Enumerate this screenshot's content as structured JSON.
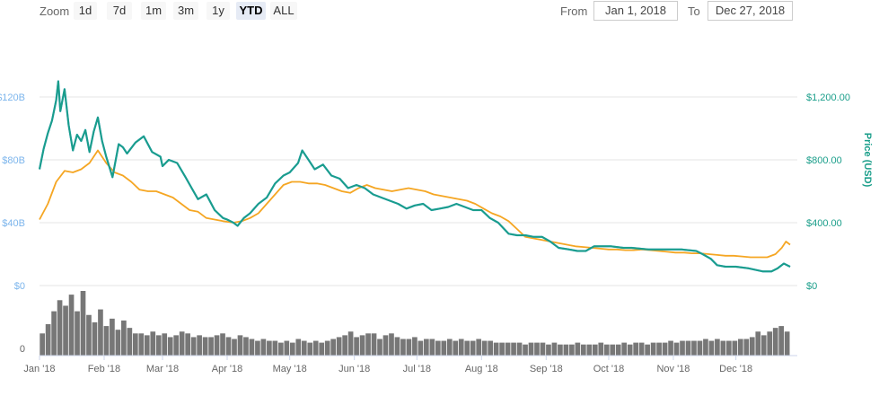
{
  "toolbar": {
    "zoom_label": "Zoom",
    "buttons": [
      "1d",
      "7d",
      "1m",
      "3m",
      "1y",
      "YTD",
      "ALL"
    ],
    "active_button": "YTD",
    "from_label": "From",
    "from_value": "Jan 1, 2018",
    "to_label": "To",
    "to_value": "Dec 27, 2018"
  },
  "colors": {
    "market_cap": "#4aa3df",
    "price": "#1a9e8a",
    "btc_price": "#f5a623",
    "volume": "#777777",
    "left_axis_text": "#7cb5ec",
    "right_axis_text": "#1a9e8a",
    "grid": "#e6e6e6"
  },
  "chart_data": {
    "type": "line",
    "x_start": "2018-01-01",
    "x_end": "2018-12-27",
    "x_ticks": [
      "Jan '18",
      "Feb '18",
      "Mar '18",
      "Apr '18",
      "May '18",
      "Jun '18",
      "Jul '18",
      "Aug '18",
      "Sep '18",
      "Oct '18",
      "Nov '18",
      "Dec '18"
    ],
    "left_axis": {
      "label": "",
      "ticks": [
        "$0",
        "$40B",
        "$80B",
        "$120B"
      ],
      "range": [
        0,
        160
      ]
    },
    "right_axis": {
      "label": "Price (USD)",
      "ticks": [
        "$0",
        "$400.00",
        "$800.00",
        "$1,200.00"
      ],
      "range": [
        0,
        1600
      ]
    },
    "volume_axis": {
      "ticks": [
        "0"
      ]
    },
    "grid": true,
    "series": [
      {
        "axis": "left",
        "dates": [
          "2018-01-01",
          "2018-01-03",
          "2018-01-05",
          "2018-01-07",
          "2018-01-09",
          "2018-01-10",
          "2018-01-11",
          "2018-01-13",
          "2018-01-15",
          "2018-01-17",
          "2018-01-19",
          "2018-01-21",
          "2018-01-23",
          "2018-01-25",
          "2018-01-27",
          "2018-01-29",
          "2018-01-31",
          "2018-02-02",
          "2018-02-05",
          "2018-02-06",
          "2018-02-08",
          "2018-02-10",
          "2018-02-12",
          "2018-02-16",
          "2018-02-20",
          "2018-02-24",
          "2018-02-28",
          "2018-03-01",
          "2018-03-04",
          "2018-03-08",
          "2018-03-12",
          "2018-03-15",
          "2018-03-18",
          "2018-03-22",
          "2018-03-26",
          "2018-03-30",
          "2018-04-01",
          "2018-04-04",
          "2018-04-06",
          "2018-04-09",
          "2018-04-12",
          "2018-04-16",
          "2018-04-20",
          "2018-04-24",
          "2018-04-28",
          "2018-05-01",
          "2018-05-05",
          "2018-05-07",
          "2018-05-10",
          "2018-05-13",
          "2018-05-17",
          "2018-05-21",
          "2018-05-25",
          "2018-05-29",
          "2018-06-02",
          "2018-06-06",
          "2018-06-10",
          "2018-06-14",
          "2018-06-18",
          "2018-06-22",
          "2018-06-26",
          "2018-06-30",
          "2018-07-04",
          "2018-07-08",
          "2018-07-12",
          "2018-07-16",
          "2018-07-20",
          "2018-07-24",
          "2018-07-28",
          "2018-08-01",
          "2018-08-05",
          "2018-08-09",
          "2018-08-14",
          "2018-08-18",
          "2018-08-22",
          "2018-08-26",
          "2018-08-30",
          "2018-09-03",
          "2018-09-07",
          "2018-09-12",
          "2018-09-16",
          "2018-09-20",
          "2018-09-24",
          "2018-09-28",
          "2018-10-02",
          "2018-10-08",
          "2018-10-12",
          "2018-10-20",
          "2018-10-28",
          "2018-11-05",
          "2018-11-12",
          "2018-11-15",
          "2018-11-19",
          "2018-11-22",
          "2018-11-26",
          "2018-12-01",
          "2018-12-07",
          "2018-12-14",
          "2018-12-18",
          "2018-12-21",
          "2018-12-24",
          "2018-12-27"
        ],
        "values": [
          74,
          87,
          97,
          105,
          118,
          130,
          111,
          125,
          102,
          86,
          96,
          92,
          99,
          85,
          98,
          107,
          92,
          82,
          69,
          76,
          90,
          88,
          84,
          91,
          95,
          85,
          82,
          76,
          80,
          78,
          69,
          62,
          55,
          58,
          48,
          43,
          42,
          40,
          38,
          43,
          46,
          52,
          56,
          65,
          70,
          72,
          78,
          86,
          80,
          74,
          77,
          70,
          68,
          62,
          64,
          62,
          58,
          56,
          54,
          52,
          49,
          51,
          52,
          48,
          49,
          50,
          52,
          50,
          48,
          48,
          43,
          40,
          33,
          32,
          32,
          31,
          31,
          28,
          24,
          23,
          22,
          22,
          25,
          25,
          25,
          24,
          24,
          23,
          23,
          23,
          22,
          20,
          17,
          13,
          12,
          12,
          11,
          9,
          9,
          11,
          14,
          12
        ]
      },
      {
        "name": "Price (USD)",
        "axis": "right",
        "dates": [
          "2018-01-01",
          "2018-01-03",
          "2018-01-05",
          "2018-01-07",
          "2018-01-09",
          "2018-01-10",
          "2018-01-11",
          "2018-01-13",
          "2018-01-15",
          "2018-01-17",
          "2018-01-19",
          "2018-01-21",
          "2018-01-23",
          "2018-01-25",
          "2018-01-27",
          "2018-01-29",
          "2018-01-31",
          "2018-02-02",
          "2018-02-05",
          "2018-02-06",
          "2018-02-08",
          "2018-02-10",
          "2018-02-12",
          "2018-02-16",
          "2018-02-20",
          "2018-02-24",
          "2018-02-28",
          "2018-03-01",
          "2018-03-04",
          "2018-03-08",
          "2018-03-12",
          "2018-03-15",
          "2018-03-18",
          "2018-03-22",
          "2018-03-26",
          "2018-03-30",
          "2018-04-01",
          "2018-04-04",
          "2018-04-06",
          "2018-04-09",
          "2018-04-12",
          "2018-04-16",
          "2018-04-20",
          "2018-04-24",
          "2018-04-28",
          "2018-05-01",
          "2018-05-05",
          "2018-05-07",
          "2018-05-10",
          "2018-05-13",
          "2018-05-17",
          "2018-05-21",
          "2018-05-25",
          "2018-05-29",
          "2018-06-02",
          "2018-06-06",
          "2018-06-10",
          "2018-06-14",
          "2018-06-18",
          "2018-06-22",
          "2018-06-26",
          "2018-06-30",
          "2018-07-04",
          "2018-07-08",
          "2018-07-12",
          "2018-07-16",
          "2018-07-20",
          "2018-07-24",
          "2018-07-28",
          "2018-08-01",
          "2018-08-05",
          "2018-08-09",
          "2018-08-14",
          "2018-08-18",
          "2018-08-22",
          "2018-08-26",
          "2018-08-30",
          "2018-09-03",
          "2018-09-07",
          "2018-09-12",
          "2018-09-16",
          "2018-09-20",
          "2018-09-24",
          "2018-09-28",
          "2018-10-02",
          "2018-10-08",
          "2018-10-12",
          "2018-10-20",
          "2018-10-28",
          "2018-11-05",
          "2018-11-12",
          "2018-11-15",
          "2018-11-19",
          "2018-11-22",
          "2018-11-26",
          "2018-12-01",
          "2018-12-07",
          "2018-12-14",
          "2018-12-18",
          "2018-12-21",
          "2018-12-24",
          "2018-12-27"
        ],
        "values": [
          740,
          870,
          970,
          1050,
          1180,
          1300,
          1110,
          1250,
          1020,
          860,
          960,
          920,
          990,
          850,
          980,
          1070,
          920,
          820,
          690,
          760,
          900,
          880,
          840,
          910,
          950,
          850,
          820,
          760,
          800,
          780,
          690,
          620,
          550,
          580,
          480,
          430,
          420,
          400,
          380,
          430,
          460,
          520,
          560,
          650,
          700,
          720,
          780,
          860,
          800,
          740,
          770,
          700,
          680,
          620,
          640,
          620,
          580,
          560,
          540,
          520,
          490,
          510,
          520,
          480,
          490,
          500,
          520,
          500,
          480,
          480,
          430,
          400,
          330,
          320,
          320,
          310,
          310,
          280,
          240,
          230,
          220,
          220,
          250,
          250,
          250,
          240,
          240,
          230,
          230,
          230,
          220,
          200,
          170,
          130,
          120,
          120,
          110,
          90,
          90,
          110,
          140,
          120
        ]
      },
      {
        "axis": "right",
        "dates": [
          "2018-01-01",
          "2018-01-05",
          "2018-01-09",
          "2018-01-13",
          "2018-01-17",
          "2018-01-21",
          "2018-01-25",
          "2018-01-29",
          "2018-02-02",
          "2018-02-06",
          "2018-02-10",
          "2018-02-14",
          "2018-02-18",
          "2018-02-22",
          "2018-02-26",
          "2018-03-02",
          "2018-03-06",
          "2018-03-10",
          "2018-03-14",
          "2018-03-18",
          "2018-03-22",
          "2018-03-26",
          "2018-03-30",
          "2018-04-04",
          "2018-04-08",
          "2018-04-12",
          "2018-04-16",
          "2018-04-20",
          "2018-04-24",
          "2018-04-28",
          "2018-05-02",
          "2018-05-06",
          "2018-05-10",
          "2018-05-14",
          "2018-05-18",
          "2018-05-22",
          "2018-05-26",
          "2018-05-30",
          "2018-06-03",
          "2018-06-07",
          "2018-06-11",
          "2018-06-15",
          "2018-06-19",
          "2018-06-23",
          "2018-06-27",
          "2018-07-01",
          "2018-07-05",
          "2018-07-09",
          "2018-07-13",
          "2018-07-17",
          "2018-07-21",
          "2018-07-25",
          "2018-07-29",
          "2018-08-02",
          "2018-08-06",
          "2018-08-10",
          "2018-08-14",
          "2018-08-18",
          "2018-08-22",
          "2018-08-26",
          "2018-08-30",
          "2018-09-03",
          "2018-09-07",
          "2018-09-11",
          "2018-09-15",
          "2018-09-19",
          "2018-09-23",
          "2018-09-27",
          "2018-10-01",
          "2018-10-05",
          "2018-10-09",
          "2018-10-13",
          "2018-10-17",
          "2018-10-21",
          "2018-10-25",
          "2018-10-29",
          "2018-11-02",
          "2018-11-06",
          "2018-11-10",
          "2018-11-14",
          "2018-11-18",
          "2018-11-22",
          "2018-11-26",
          "2018-11-30",
          "2018-12-04",
          "2018-12-08",
          "2018-12-12",
          "2018-12-16",
          "2018-12-20",
          "2018-12-23",
          "2018-12-25",
          "2018-12-27"
        ],
        "values": [
          420,
          520,
          660,
          730,
          720,
          740,
          780,
          860,
          780,
          720,
          700,
          660,
          610,
          600,
          600,
          580,
          560,
          520,
          480,
          470,
          430,
          420,
          410,
          400,
          410,
          430,
          460,
          520,
          580,
          640,
          660,
          660,
          650,
          650,
          640,
          620,
          600,
          590,
          620,
          640,
          620,
          610,
          600,
          610,
          620,
          610,
          600,
          580,
          570,
          560,
          550,
          540,
          520,
          490,
          460,
          440,
          410,
          360,
          310,
          300,
          290,
          280,
          270,
          260,
          250,
          245,
          240,
          235,
          230,
          230,
          225,
          225,
          230,
          225,
          220,
          215,
          210,
          210,
          205,
          205,
          200,
          195,
          190,
          190,
          185,
          180,
          180,
          180,
          200,
          240,
          280,
          260
        ]
      }
    ],
    "volume_bars": [
      12,
      17,
      24,
      30,
      27,
      33,
      24,
      35,
      22,
      18,
      25,
      16,
      20,
      14,
      19,
      15,
      12,
      12,
      11,
      13,
      11,
      12,
      10,
      11,
      13,
      12,
      10,
      11,
      10,
      10,
      11,
      12,
      10,
      9,
      11,
      10,
      9,
      8,
      9,
      8,
      8,
      7,
      8,
      7,
      9,
      8,
      7,
      8,
      7,
      8,
      9,
      10,
      11,
      13,
      10,
      11,
      12,
      12,
      9,
      11,
      12,
      10,
      9,
      9,
      10,
      8,
      9,
      9,
      8,
      8,
      9,
      8,
      9,
      8,
      8,
      9,
      8,
      8,
      7,
      7,
      7,
      7,
      7,
      6,
      7,
      7,
      7,
      6,
      7,
      6,
      6,
      6,
      7,
      6,
      6,
      6,
      7,
      6,
      6,
      6,
      7,
      6,
      7,
      7,
      6,
      7,
      7,
      7,
      8,
      7,
      8,
      8,
      8,
      8,
      9,
      8,
      9,
      8,
      8,
      8,
      9,
      9,
      10,
      13,
      11,
      13,
      15,
      16,
      13
    ]
  }
}
